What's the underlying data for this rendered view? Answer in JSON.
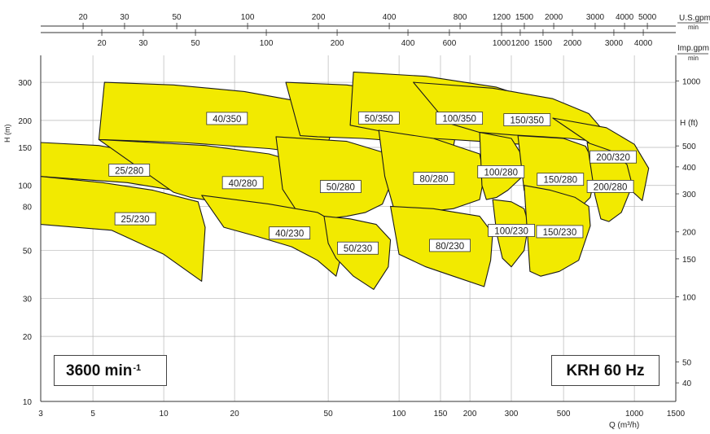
{
  "chart_data": {
    "type": "area",
    "title": "",
    "x_axis": {
      "label": "Q (m³/h)",
      "scale": "log",
      "range": [
        3,
        1500
      ],
      "ticks": [
        3,
        5,
        10,
        20,
        50,
        100,
        150,
        200,
        300,
        500,
        1000,
        1500
      ]
    },
    "y_axis_left": {
      "label": "H (m)",
      "scale": "log",
      "range": [
        10,
        400
      ],
      "ticks": [
        10,
        20,
        30,
        50,
        80,
        100,
        150,
        200,
        300
      ]
    },
    "y_axis_right": {
      "label": "H (ft)",
      "ticks": [
        40,
        50,
        100,
        150,
        200,
        300,
        400,
        500,
        1000
      ]
    },
    "top_axis_usgpm": {
      "unit_top": "U.S.gpm",
      "unit_bottom": "min",
      "ticks": [
        20,
        30,
        50,
        100,
        200,
        400,
        800,
        1200,
        1500,
        2000,
        3000,
        4000,
        5000
      ]
    },
    "top_axis_impgpm": {
      "unit_top": "Imp.gpm",
      "unit_bottom": "min",
      "ticks": [
        20,
        30,
        50,
        100,
        200,
        400,
        600,
        1000,
        1200,
        1500,
        2000,
        3000,
        4000
      ]
    },
    "grid": true,
    "fill_color": "#f2ea00",
    "series": [
      {
        "name": "40/350",
        "region": {
          "x": [
            5.6,
            11,
            22,
            42,
            54,
            48,
            28,
            12,
            5.3
          ],
          "y": [
            300,
            292,
            272,
            240,
            205,
            138,
            148,
            158,
            163
          ]
        }
      },
      {
        "name": "50/350",
        "region": {
          "x": [
            33,
            60,
            100,
            160,
            180,
            170,
            120,
            70,
            45,
            38
          ],
          "y": [
            300,
            292,
            270,
            240,
            210,
            150,
            158,
            165,
            168,
            170
          ]
        }
      },
      {
        "name": "100/350",
        "region": {
          "x": [
            64,
            130,
            260,
            420,
            500,
            470,
            330,
            220,
            140,
            110,
            80,
            62
          ],
          "y": [
            335,
            320,
            285,
            240,
            210,
            150,
            155,
            160,
            165,
            168,
            180,
            190
          ]
        }
      },
      {
        "name": "150/350",
        "region": {
          "x": [
            115,
            250,
            450,
            640,
            720,
            680,
            530,
            410,
            310,
            220,
            160
          ],
          "y": [
            300,
            282,
            252,
            215,
            185,
            160,
            165,
            168,
            171,
            176,
            195
          ]
        }
      },
      {
        "name": "200/320",
        "region": {
          "x": [
            450,
            760,
            1000,
            1150,
            1080,
            920,
            760,
            640
          ],
          "y": [
            205,
            185,
            155,
            120,
            85,
            100,
            120,
            158
          ]
        }
      },
      {
        "name": "25/280",
        "region": {
          "x": [
            3,
            5.3,
            9,
            14,
            14.5,
            11,
            7,
            3
          ],
          "y": [
            158,
            153,
            138,
            114,
            90,
            95,
            103,
            110
          ]
        }
      },
      {
        "name": "40/280",
        "region": {
          "x": [
            5.3,
            15,
            28,
            48,
            54,
            48,
            32,
            18,
            13,
            11
          ],
          "y": [
            163,
            153,
            140,
            118,
            90,
            70,
            76,
            83,
            88,
            93
          ]
        }
      },
      {
        "name": "50/280",
        "region": {
          "x": [
            30,
            60,
            90,
            95,
            85,
            72,
            60,
            48,
            38,
            32
          ],
          "y": [
            168,
            160,
            140,
            110,
            82,
            75,
            72,
            70,
            72,
            96
          ]
        }
      },
      {
        "name": "80/280",
        "region": {
          "x": [
            82,
            140,
            220,
            230,
            220,
            170,
            120,
            95,
            87
          ],
          "y": [
            180,
            165,
            140,
            110,
            86,
            78,
            75,
            78,
            110
          ]
        }
      },
      {
        "name": "100/280",
        "region": {
          "x": [
            220,
            300,
            330,
            335,
            290,
            260,
            235,
            225
          ],
          "y": [
            176,
            165,
            140,
            110,
            95,
            88,
            86,
            100
          ]
        }
      },
      {
        "name": "150/280",
        "region": {
          "x": [
            320,
            500,
            620,
            690,
            650,
            560,
            460,
            380,
            340
          ],
          "y": [
            170,
            165,
            152,
            120,
            88,
            75,
            72,
            78,
            95
          ]
        }
      },
      {
        "name": "200/280",
        "region": {
          "x": [
            630,
            790,
            930,
            980,
            880,
            780,
            720,
            680
          ],
          "y": [
            158,
            145,
            125,
            100,
            75,
            68,
            70,
            90
          ]
        }
      },
      {
        "name": "25/230",
        "region": {
          "x": [
            3,
            5.5,
            9,
            14,
            15,
            14.5,
            10,
            6,
            3
          ],
          "y": [
            110,
            103,
            95,
            84,
            64,
            36,
            48,
            62,
            66
          ]
        }
      },
      {
        "name": "40/230",
        "region": {
          "x": [
            14.5,
            28,
            45,
            55,
            58,
            54,
            45,
            35,
            25,
            18
          ],
          "y": [
            90,
            82,
            75,
            66,
            52,
            38,
            45,
            52,
            58,
            64
          ]
        }
      },
      {
        "name": "50/230",
        "region": {
          "x": [
            48,
            62,
            80,
            92,
            90,
            78,
            64,
            54,
            50
          ],
          "y": [
            72,
            70,
            66,
            56,
            42,
            33,
            38,
            46,
            54
          ]
        }
      },
      {
        "name": "80/230",
        "region": {
          "x": [
            92,
            140,
            220,
            250,
            245,
            230,
            170,
            130,
            100
          ],
          "y": [
            80,
            78,
            72,
            60,
            45,
            34,
            38,
            42,
            48
          ]
        }
      },
      {
        "name": "100/230",
        "region": {
          "x": [
            250,
            300,
            340,
            355,
            340,
            300,
            275,
            260
          ],
          "y": [
            86,
            84,
            78,
            66,
            50,
            42,
            46,
            60
          ]
        }
      },
      {
        "name": "150/230",
        "region": {
          "x": [
            340,
            440,
            560,
            640,
            650,
            580,
            480,
            400,
            360
          ],
          "y": [
            100,
            95,
            88,
            80,
            65,
            45,
            40,
            38,
            40
          ]
        }
      }
    ],
    "callouts": [
      {
        "text": "3600 min",
        "superscript": "-1"
      },
      {
        "text": "KRH 60 Hz"
      }
    ]
  }
}
